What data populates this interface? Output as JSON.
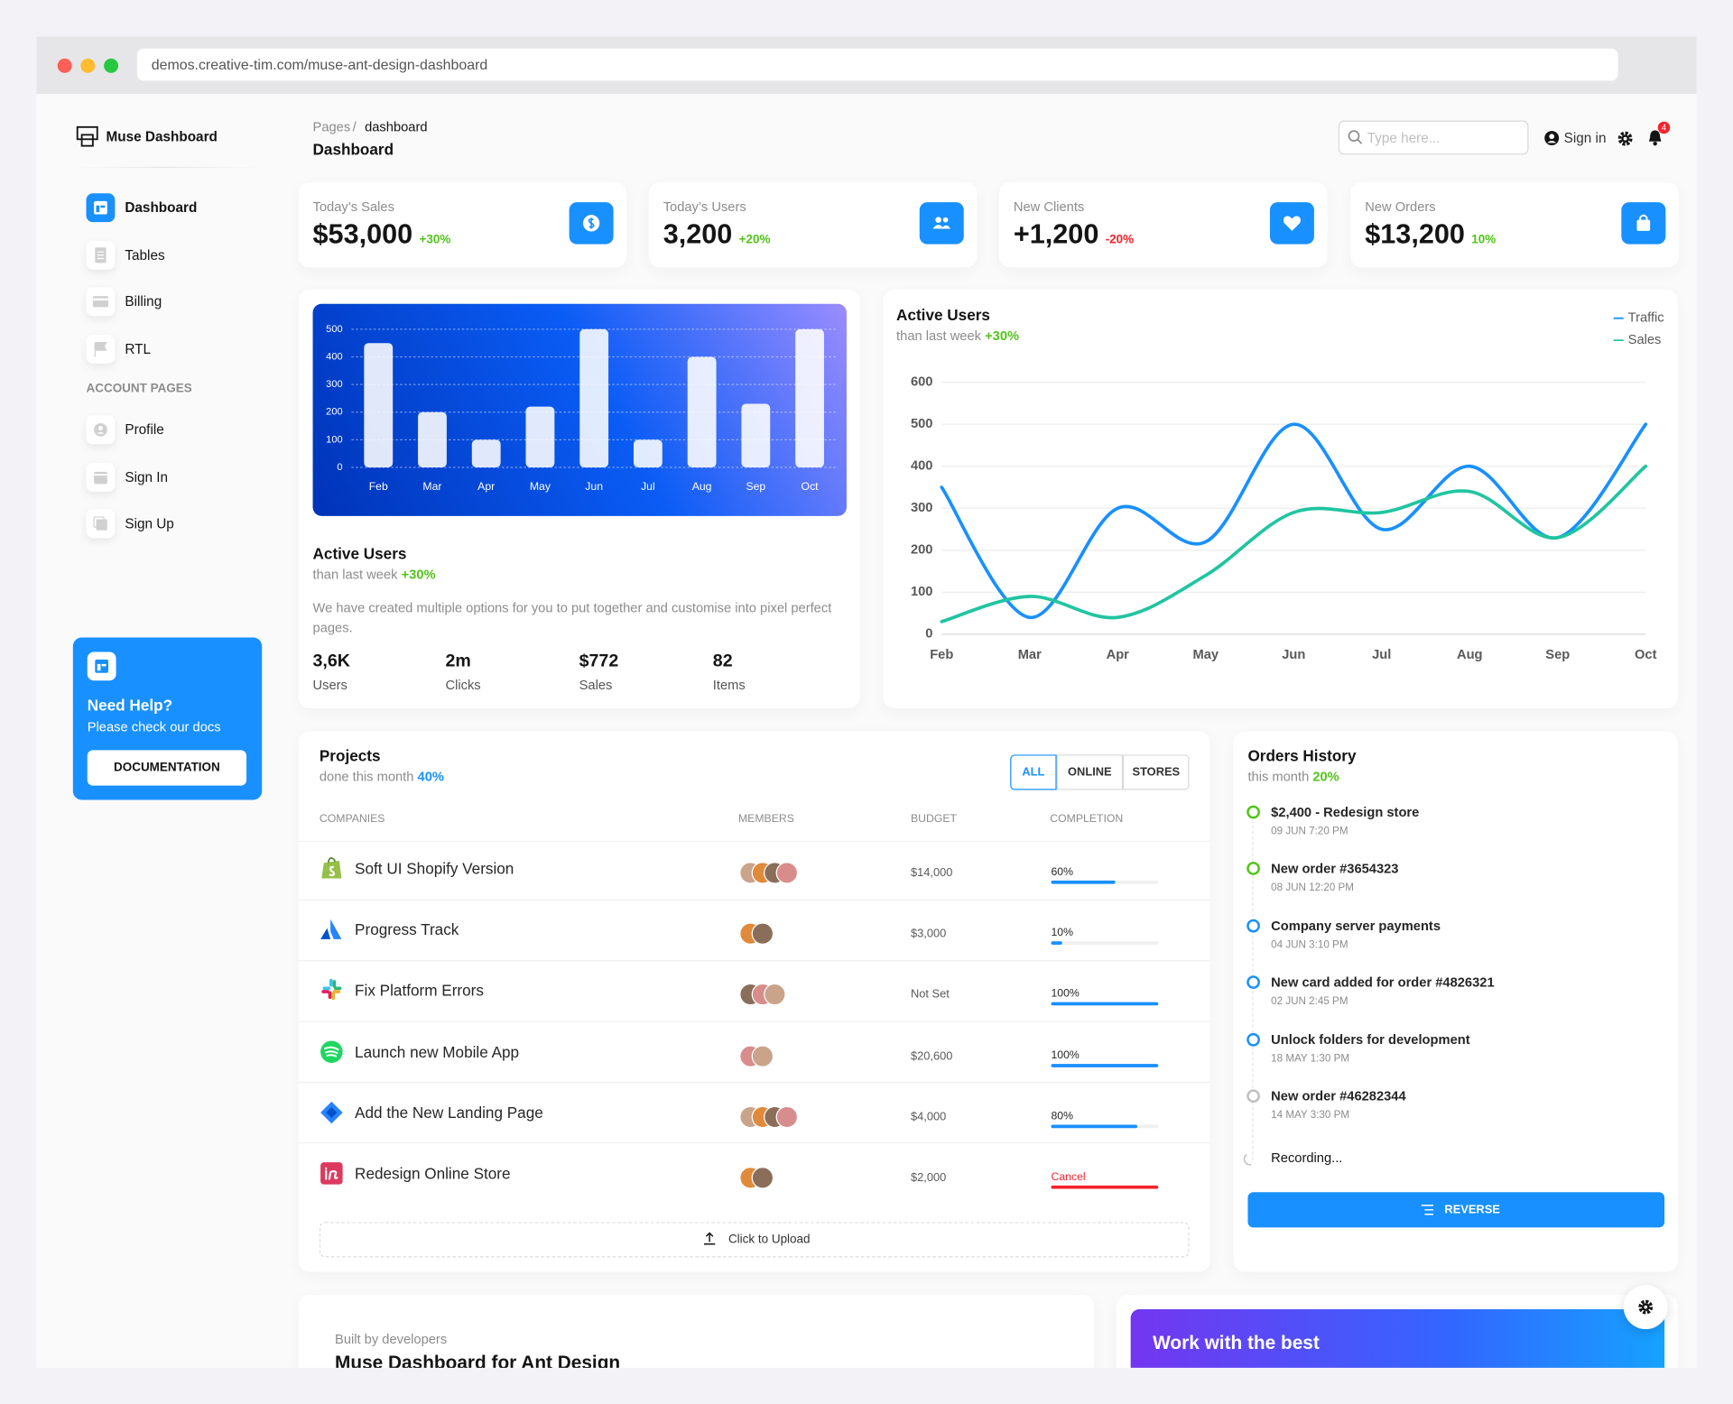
{
  "browser": {
    "url": "demos.creative-tim.com/muse-ant-design-dashboard"
  },
  "sidebar": {
    "brand": "Muse Dashboard",
    "nav": [
      "Dashboard",
      "Tables",
      "Billing",
      "RTL"
    ],
    "section": "ACCOUNT PAGES",
    "account": [
      "Profile",
      "Sign In",
      "Sign Up"
    ],
    "help": {
      "title": "Need Help?",
      "text": "Please check our docs",
      "button": "DOCUMENTATION"
    }
  },
  "header": {
    "breadcrumb": [
      "Pages",
      "dashboard"
    ],
    "separator": "/",
    "title": "Dashboard",
    "search_placeholder": "Type here...",
    "sign_in": "Sign in",
    "notifications": 4
  },
  "stats": [
    {
      "label": "Today’s Sales",
      "value": "$53,000",
      "change": "+30%"
    },
    {
      "label": "Today’s Users",
      "value": "3,200",
      "change": "+20%"
    },
    {
      "label": "New Clients",
      "value": "+1,200",
      "change": "-20%"
    },
    {
      "label": "New Orders",
      "value": "$13,200",
      "change": "10%"
    }
  ],
  "chart_data": [
    {
      "type": "bar",
      "categories": [
        "Feb",
        "Mar",
        "Apr",
        "May",
        "Jun",
        "Jul",
        "Aug",
        "Sep",
        "Oct"
      ],
      "values": [
        450,
        200,
        100,
        220,
        500,
        100,
        400,
        230,
        500
      ],
      "color": "#ffffff",
      "ylim": [
        0,
        500
      ],
      "yticks": [
        0,
        100,
        200,
        300,
        400,
        500
      ],
      "grid": true
    },
    {
      "type": "line",
      "title": "Active Users",
      "subtitle": "than last week",
      "change": "+30%",
      "categories": [
        "Feb",
        "Mar",
        "Apr",
        "May",
        "Jun",
        "Jul",
        "Aug",
        "Sep",
        "Oct"
      ],
      "series": [
        {
          "name": "Traffic",
          "color": "#1890ff",
          "values": [
            350,
            40,
            300,
            220,
            500,
            250,
            400,
            230,
            500
          ]
        },
        {
          "name": "Sales",
          "color": "#20c5a0",
          "values": [
            30,
            90,
            40,
            140,
            290,
            290,
            340,
            230,
            400
          ]
        }
      ],
      "ylim": [
        0,
        600
      ],
      "yticks": [
        0,
        100,
        200,
        300,
        400,
        500,
        600
      ],
      "grid": true,
      "legend": "top-right"
    }
  ],
  "active_users": {
    "title": "Active Users",
    "subtitle": "than last week",
    "change": "+30%",
    "description": "We have created multiple options for you to put together and customise into pixel perfect pages.",
    "metrics": [
      {
        "value": "3,6K",
        "label": "Users"
      },
      {
        "value": "2m",
        "label": "Clicks"
      },
      {
        "value": "$772",
        "label": "Sales"
      },
      {
        "value": "82",
        "label": "Items"
      }
    ]
  },
  "projects": {
    "title": "Projects",
    "subtitle": "done this month",
    "change": "40%",
    "filters": [
      "ALL",
      "ONLINE",
      "STORES"
    ],
    "columns": [
      "COMPANIES",
      "MEMBERS",
      "BUDGET",
      "COMPLETION"
    ],
    "rows": [
      {
        "company": "Soft UI Shopify Version",
        "budget": "$14,000",
        "completion": {
          "value": 60,
          "label": "60%"
        }
      },
      {
        "company": "Progress Track",
        "budget": "$3,000",
        "completion": {
          "value": 10,
          "label": "10%"
        }
      },
      {
        "company": "Fix Platform Errors",
        "budget": "Not Set",
        "completion": {
          "value": 100,
          "label": "100%"
        }
      },
      {
        "company": "Launch new Mobile App",
        "budget": "$20,600",
        "completion": {
          "value": 100,
          "label": "100%"
        }
      },
      {
        "company": "Add the New Landing Page",
        "budget": "$4,000",
        "completion": {
          "value": 80,
          "label": "80%"
        }
      },
      {
        "company": "Redesign Online Store",
        "budget": "$2,000",
        "completion": "Cancel"
      }
    ],
    "upload": "Click to Upload"
  },
  "orders": {
    "title": "Orders History",
    "subtitle": "this month",
    "change": "20%",
    "items": [
      {
        "title": "$2,400 - Redesign store",
        "time": "09 JUN 7:20 PM",
        "color": "#52c41a"
      },
      {
        "title": "New order #3654323",
        "time": "08 JUN 12:20 PM",
        "color": "#52c41a"
      },
      {
        "title": "Company server payments",
        "time": "04 JUN 3:10 PM",
        "color": "#1890ff"
      },
      {
        "title": "New card added for order #4826321",
        "time": "02 JUN 2:45 PM",
        "color": "#1890ff"
      },
      {
        "title": "Unlock folders for development",
        "time": "18 MAY 1:30 PM",
        "color": "#1890ff"
      },
      {
        "title": "New order #46282344",
        "time": "14 MAY 3:30 PM",
        "color": "#bfbfbf"
      }
    ],
    "pending": "Recording...",
    "button": "REVERSE"
  },
  "promo": {
    "eyebrow": "Built by developers",
    "title": "Muse Dashboard for Ant Design",
    "banner": "Work with the best"
  }
}
